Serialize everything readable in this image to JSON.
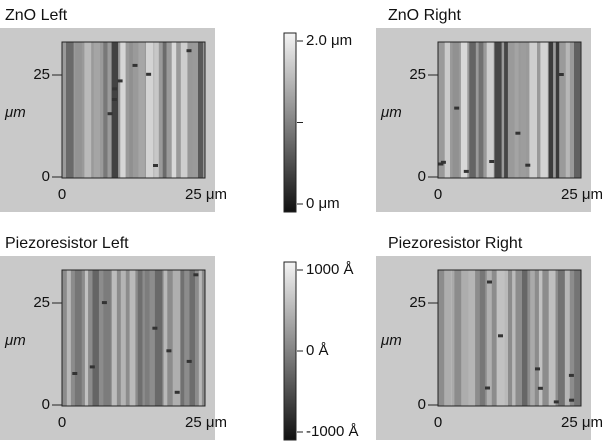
{
  "panels": [
    {
      "title": "ZnO Left",
      "y_ticks": [
        "25",
        "0"
      ],
      "y_unit": "μm",
      "x_ticks": [
        "0",
        "25 μm"
      ]
    },
    {
      "title": "ZnO Right",
      "y_ticks": [
        "25",
        "0"
      ],
      "y_unit": "μm",
      "x_ticks": [
        "0",
        "25 μm"
      ]
    },
    {
      "title": "Piezoresistor Left",
      "y_ticks": [
        "25",
        "0"
      ],
      "y_unit": "μm",
      "x_ticks": [
        "0",
        "25 μm"
      ]
    },
    {
      "title": "Piezoresistor Right",
      "y_ticks": [
        "25",
        "0"
      ],
      "y_unit": "μm",
      "x_ticks": [
        "0",
        "25 μm"
      ]
    }
  ],
  "colorbars": [
    {
      "labels": [
        "2.0 μm",
        "0 μm"
      ]
    },
    {
      "labels": [
        "1000 Å",
        "0 Å",
        "-1000 Å"
      ]
    }
  ]
}
